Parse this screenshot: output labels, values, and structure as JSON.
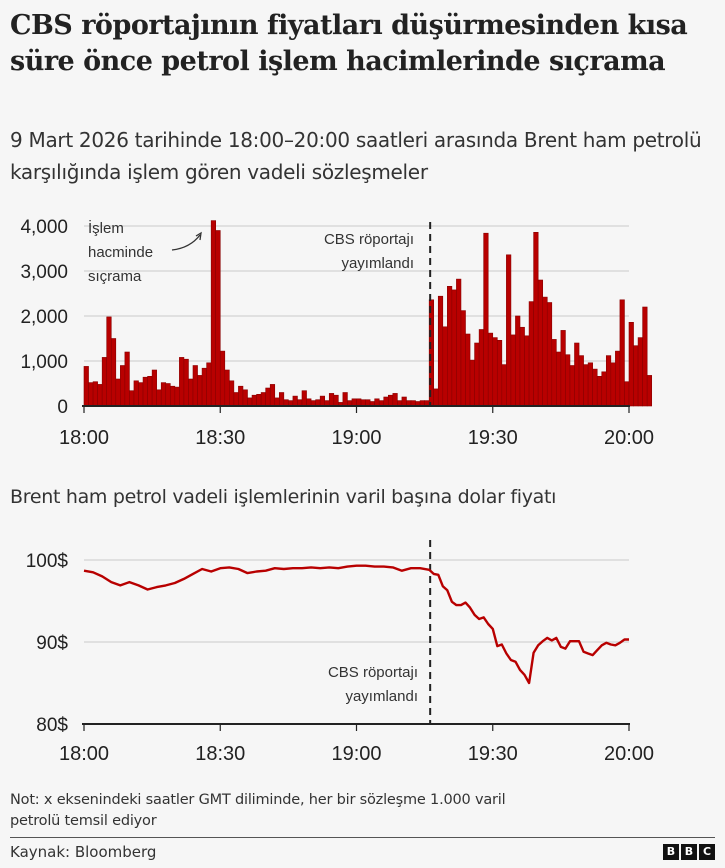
{
  "header": {
    "title": "CBS röportajının fiyatları düşürmesinden kısa süre önce petrol işlem hacimlerinde sıçrama",
    "subtitle": "9 Mart 2026 tarihinde 18:00–20:00 saatleri arasında Brent ham petrolü karşılığında işlem gören vadeli sözleşmeler"
  },
  "chart2": {
    "title": "Brent ham petrol vadeli işlemlerinin varil başına dolar fiyatı"
  },
  "annotations": {
    "spike": [
      "İşlem",
      "hacminde",
      "sıçrama"
    ],
    "interview": [
      "CBS röportajı",
      "yayımlandı"
    ]
  },
  "footer": {
    "note": "Not: x eksenindeki saatler GMT diliminde, her bir sözleşme 1.000 varil petrolü temsil ediyor",
    "source": "Kaynak: Bloomberg",
    "logo": [
      "B",
      "B",
      "C"
    ]
  },
  "colors": {
    "bar": "#b80000",
    "bar_edge": "#8a0000",
    "line": "#b80000",
    "grid": "#d9d9d9",
    "axis": "#222222"
  },
  "chart_data": [
    {
      "type": "bar",
      "title": "9 Mart 2026 tarihinde 18:00–20:00 saatleri arasında Brent ham petrolü karşılığında işlem gören vadeli sözleşmeler",
      "xlabel": "",
      "ylabel": "",
      "x_ticks": [
        "18:00",
        "18:30",
        "19:00",
        "19:30",
        "20:00"
      ],
      "y_ticks": [
        "0",
        "1,000",
        "2,000",
        "3,000",
        "4,000"
      ],
      "ylim": [
        0,
        4200
      ],
      "grid": true,
      "interval_minutes": 1,
      "event_minute": 76,
      "event_label": "CBS röportajı yayımlandı",
      "annotation": "İşlem hacminde sıçrama",
      "values": [
        880,
        520,
        540,
        480,
        1080,
        1980,
        1500,
        600,
        900,
        1200,
        340,
        560,
        520,
        640,
        660,
        800,
        360,
        520,
        500,
        440,
        420,
        1080,
        1040,
        600,
        900,
        680,
        840,
        960,
        4120,
        3900,
        1220,
        800,
        560,
        300,
        440,
        360,
        180,
        240,
        260,
        300,
        400,
        480,
        180,
        300,
        140,
        120,
        220,
        140,
        340,
        160,
        120,
        140,
        220,
        120,
        280,
        240,
        80,
        300,
        120,
        160,
        160,
        140,
        140,
        100,
        160,
        120,
        200,
        240,
        280,
        120,
        200,
        120,
        120,
        100,
        120,
        120,
        2360,
        380,
        2440,
        1760,
        2660,
        2580,
        2820,
        2120,
        1600,
        1020,
        1400,
        1700,
        3840,
        1620,
        1520,
        1460,
        920,
        3360,
        1580,
        2000,
        1750,
        1560,
        2320,
        3860,
        2800,
        2420,
        2300,
        1480,
        1200,
        1680,
        1140,
        900,
        1400,
        1120,
        920,
        960,
        820,
        660,
        760,
        1120,
        960,
        1220,
        2360,
        540,
        1860,
        1340,
        1520,
        2200,
        680
      ]
    },
    {
      "type": "line",
      "title": "Brent ham petrol vadeli işlemlerinin varil başına dolar fiyatı",
      "xlabel": "",
      "ylabel": "",
      "x_ticks": [
        "18:00",
        "18:30",
        "19:00",
        "19:30",
        "20:00"
      ],
      "y_ticks": [
        "80$",
        "90$",
        "100$"
      ],
      "ylim": [
        80,
        100
      ],
      "grid": true,
      "event_minute": 76,
      "event_label": "CBS röportajı yayımlandı",
      "x_minutes": [
        0,
        2,
        4,
        6,
        8,
        10,
        12,
        14,
        16,
        18,
        20,
        22,
        24,
        26,
        28,
        30,
        32,
        34,
        36,
        38,
        40,
        42,
        44,
        46,
        48,
        50,
        52,
        54,
        56,
        58,
        60,
        62,
        64,
        66,
        68,
        70,
        72,
        74,
        76,
        77,
        78,
        79,
        80,
        81,
        82,
        83,
        84,
        85,
        86,
        87,
        88,
        89,
        90,
        91,
        92,
        93,
        94,
        95,
        96,
        97,
        98,
        99,
        100,
        101,
        102,
        103,
        104,
        105,
        106,
        107,
        108,
        109,
        110,
        111,
        112,
        113,
        114,
        115,
        116,
        117,
        118,
        119,
        120
      ],
      "values": [
        98.7,
        98.5,
        98.0,
        97.3,
        96.9,
        97.3,
        96.9,
        96.4,
        96.7,
        96.9,
        97.2,
        97.7,
        98.3,
        98.9,
        98.6,
        99.0,
        99.1,
        98.9,
        98.4,
        98.6,
        98.7,
        99.0,
        98.9,
        99.0,
        99.0,
        99.1,
        99.0,
        99.1,
        99.0,
        99.2,
        99.3,
        99.3,
        99.2,
        99.2,
        99.1,
        98.7,
        99.0,
        99.0,
        98.8,
        98.3,
        98.2,
        96.8,
        96.3,
        94.9,
        94.5,
        94.5,
        94.8,
        94.2,
        93.3,
        92.8,
        93.0,
        92.2,
        91.6,
        89.5,
        89.7,
        88.6,
        87.8,
        87.6,
        86.6,
        86.0,
        85.0,
        88.7,
        89.6,
        90.1,
        90.5,
        90.2,
        90.5,
        89.4,
        89.2,
        90.1,
        90.1,
        90.1,
        88.8,
        88.6,
        88.4,
        89.0,
        89.6,
        89.9,
        89.7,
        89.6,
        89.9,
        90.3,
        90.3
      ]
    }
  ]
}
